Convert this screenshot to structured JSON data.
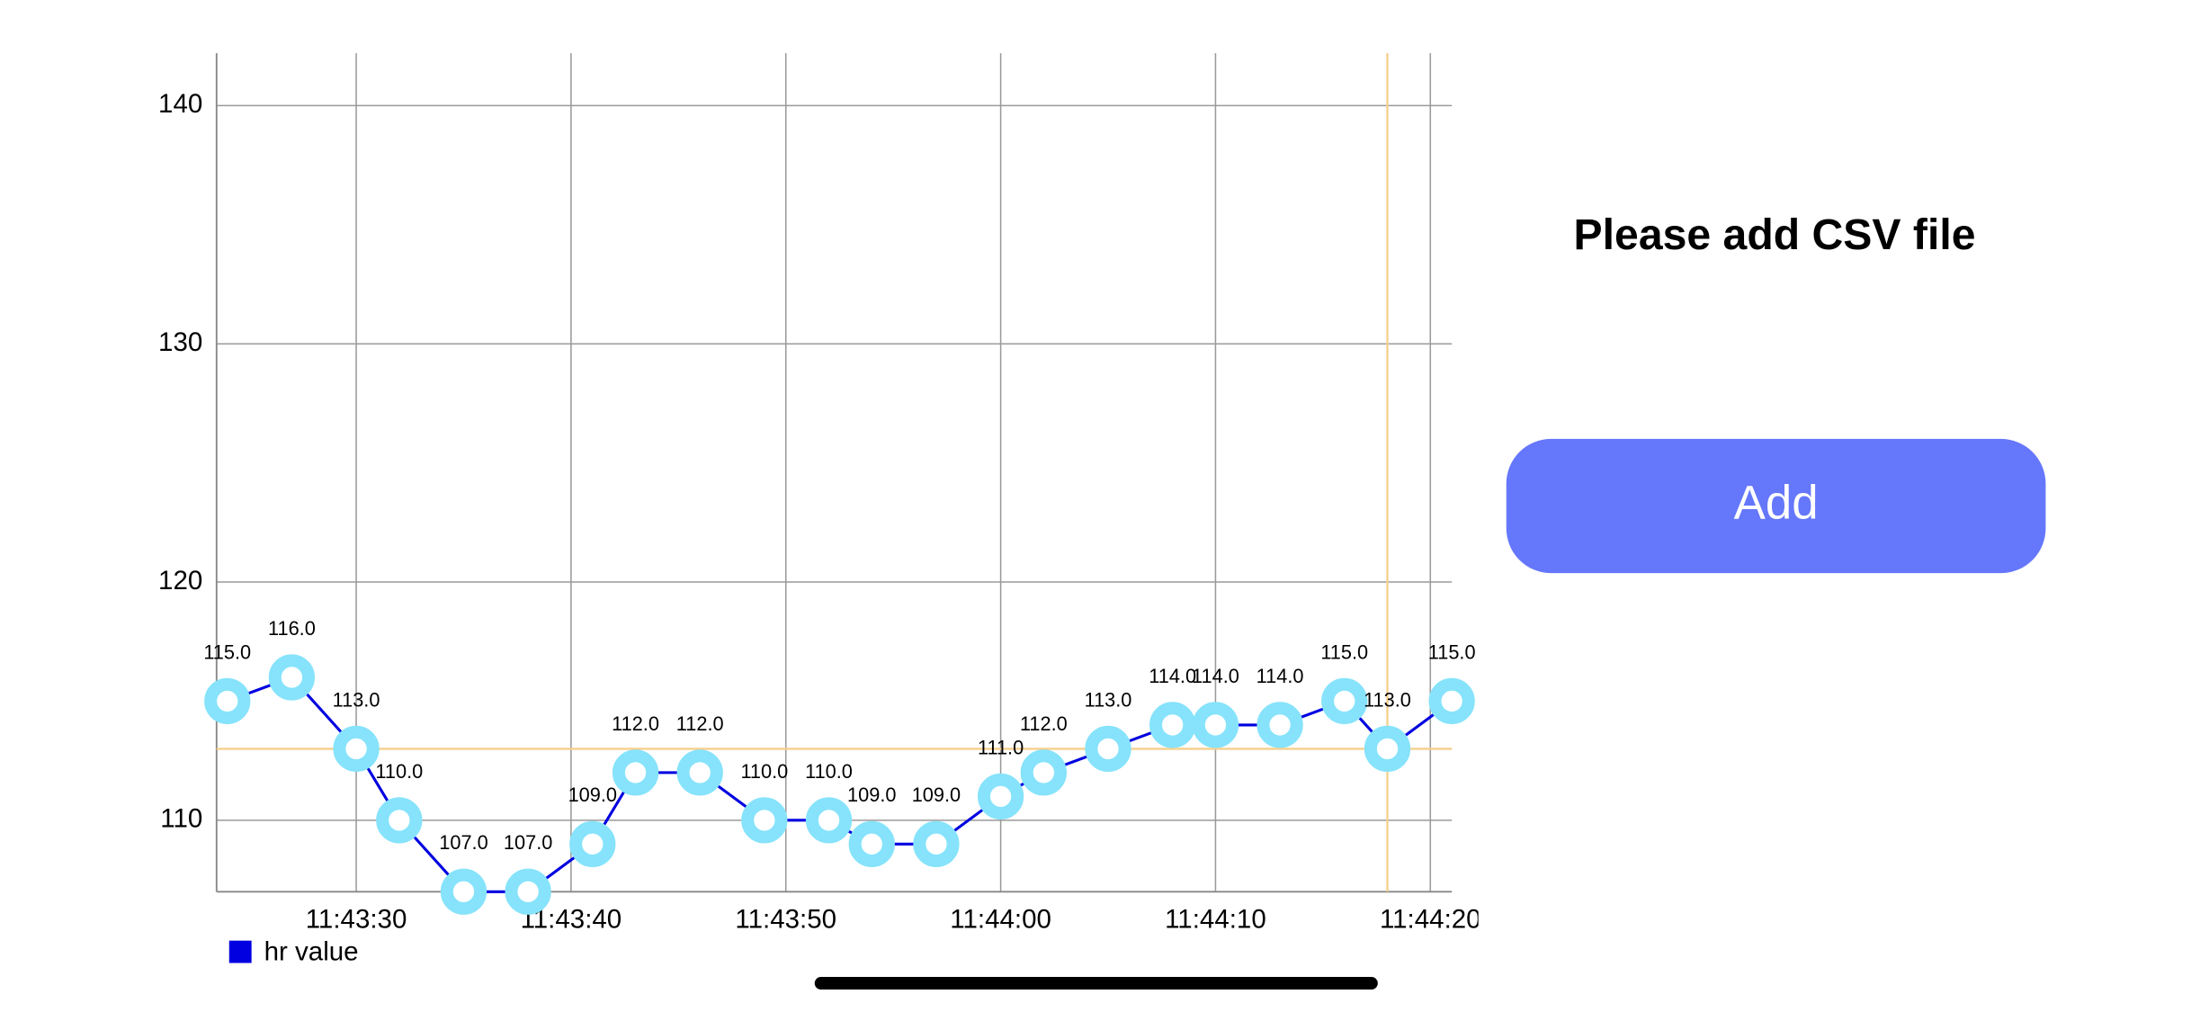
{
  "chart_data": {
    "type": "line",
    "x": [
      "11:43:24",
      "11:43:27",
      "11:43:30",
      "11:43:32",
      "11:43:35",
      "11:43:38",
      "11:43:41",
      "11:43:43",
      "11:43:46",
      "11:43:49",
      "11:43:52",
      "11:43:54",
      "11:43:57",
      "11:44:00",
      "11:44:02",
      "11:44:05",
      "11:44:08",
      "11:44:10",
      "11:44:13",
      "11:44:16",
      "11:44:18",
      "11:44:21"
    ],
    "series": [
      {
        "name": "hr value",
        "color": "#0000e0",
        "marker_color": "#86e3fb",
        "values": [
          115,
          116,
          113,
          110,
          107,
          107,
          109,
          112,
          112,
          110,
          110,
          109,
          109,
          111,
          112,
          113,
          114,
          114,
          114,
          115,
          113,
          115
        ],
        "value_labels": [
          "115.0",
          "116.0",
          "113.0",
          "110.0",
          "107.0",
          "107.0",
          "109.0",
          "112.0",
          "112.0",
          "110.0",
          "110.0",
          "109.0",
          "109.0",
          "111.0",
          "112.0",
          "113.0",
          "114.0",
          "114.0",
          "114.0",
          "115.0",
          "113.0",
          "115.0"
        ]
      }
    ],
    "xlim": [
      "11:43:23.5",
      "11:44:21"
    ],
    "xticks": [
      "11:43:30",
      "11:43:40",
      "11:43:50",
      "11:44:00",
      "11:44:10",
      "11:44:20"
    ],
    "ylim": [
      107,
      142.2
    ],
    "yticks": [
      110,
      120,
      130,
      140
    ],
    "grid": true,
    "highlight": {
      "x": "11:44:18",
      "y": 113,
      "color": "#f5cf8c"
    },
    "legend": "bottom-left"
  },
  "panel": {
    "title": "Please add CSV file",
    "button": "Add"
  }
}
